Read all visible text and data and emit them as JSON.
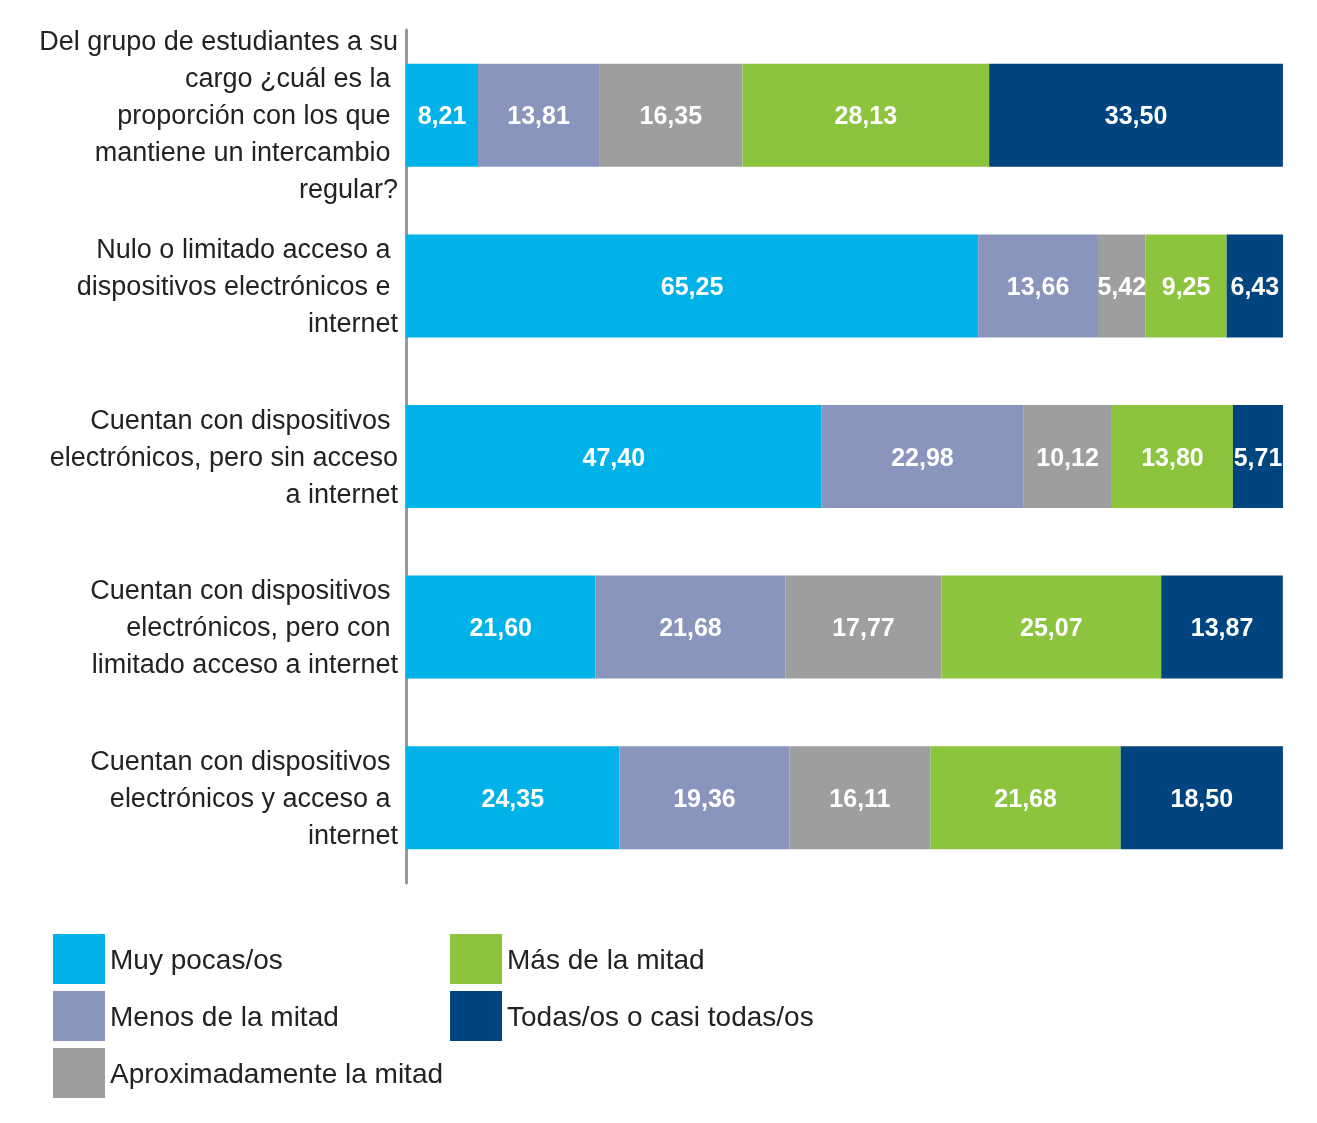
{
  "chart_data": {
    "type": "bar",
    "orientation": "horizontal",
    "stacked": true,
    "legend": "bottom",
    "grid": false,
    "categories": [
      "Del grupo de estudiantes a su cargo ¿cuál es la proporción con los que mantiene un intercambio regular?",
      "Nulo o limitado acceso a dispositivos electrónicos e internet",
      "Cuentan con dispositivos electrónicos, pero sin acceso a internet",
      "Cuentan con dispositivos electrónicos, pero con limitado acceso a internet",
      "Cuentan con dispositivos electrónicos y acceso a internet"
    ],
    "series": [
      {
        "name": "Muy pocas/os",
        "color": "#00b2e8",
        "values": [
          8.21,
          65.25,
          47.4,
          21.6,
          24.35
        ],
        "value_labels": [
          "8,21",
          "65,25",
          "47,40",
          "21,60",
          "24,35"
        ]
      },
      {
        "name": "Menos de la mitad",
        "color": "#8a95bd",
        "values": [
          13.81,
          13.66,
          22.98,
          21.68,
          19.36
        ],
        "value_labels": [
          "13,81",
          "13,66",
          "22,98",
          "21,68",
          "19,36"
        ]
      },
      {
        "name": "Aproximadamente la mitad",
        "color": "#9d9ea0",
        "values": [
          16.35,
          5.42,
          10.12,
          17.77,
          16.11
        ],
        "value_labels": [
          "16,35",
          "5,42",
          "10,12",
          "17,77",
          "16,11"
        ]
      },
      {
        "name": "Más de la mitad",
        "color": "#8cc43e",
        "values": [
          28.13,
          9.25,
          13.8,
          25.07,
          21.68
        ],
        "value_labels": [
          "28,13",
          "9,25",
          "13,80",
          "25,07",
          "21,68"
        ]
      },
      {
        "name": "Todas/os o casi todas/os",
        "color": "#00457f",
        "values": [
          33.5,
          6.43,
          5.71,
          13.87,
          18.5
        ],
        "value_labels": [
          "33,50",
          "6,43",
          "5,71",
          "13,87",
          "18,50"
        ]
      }
    ]
  }
}
